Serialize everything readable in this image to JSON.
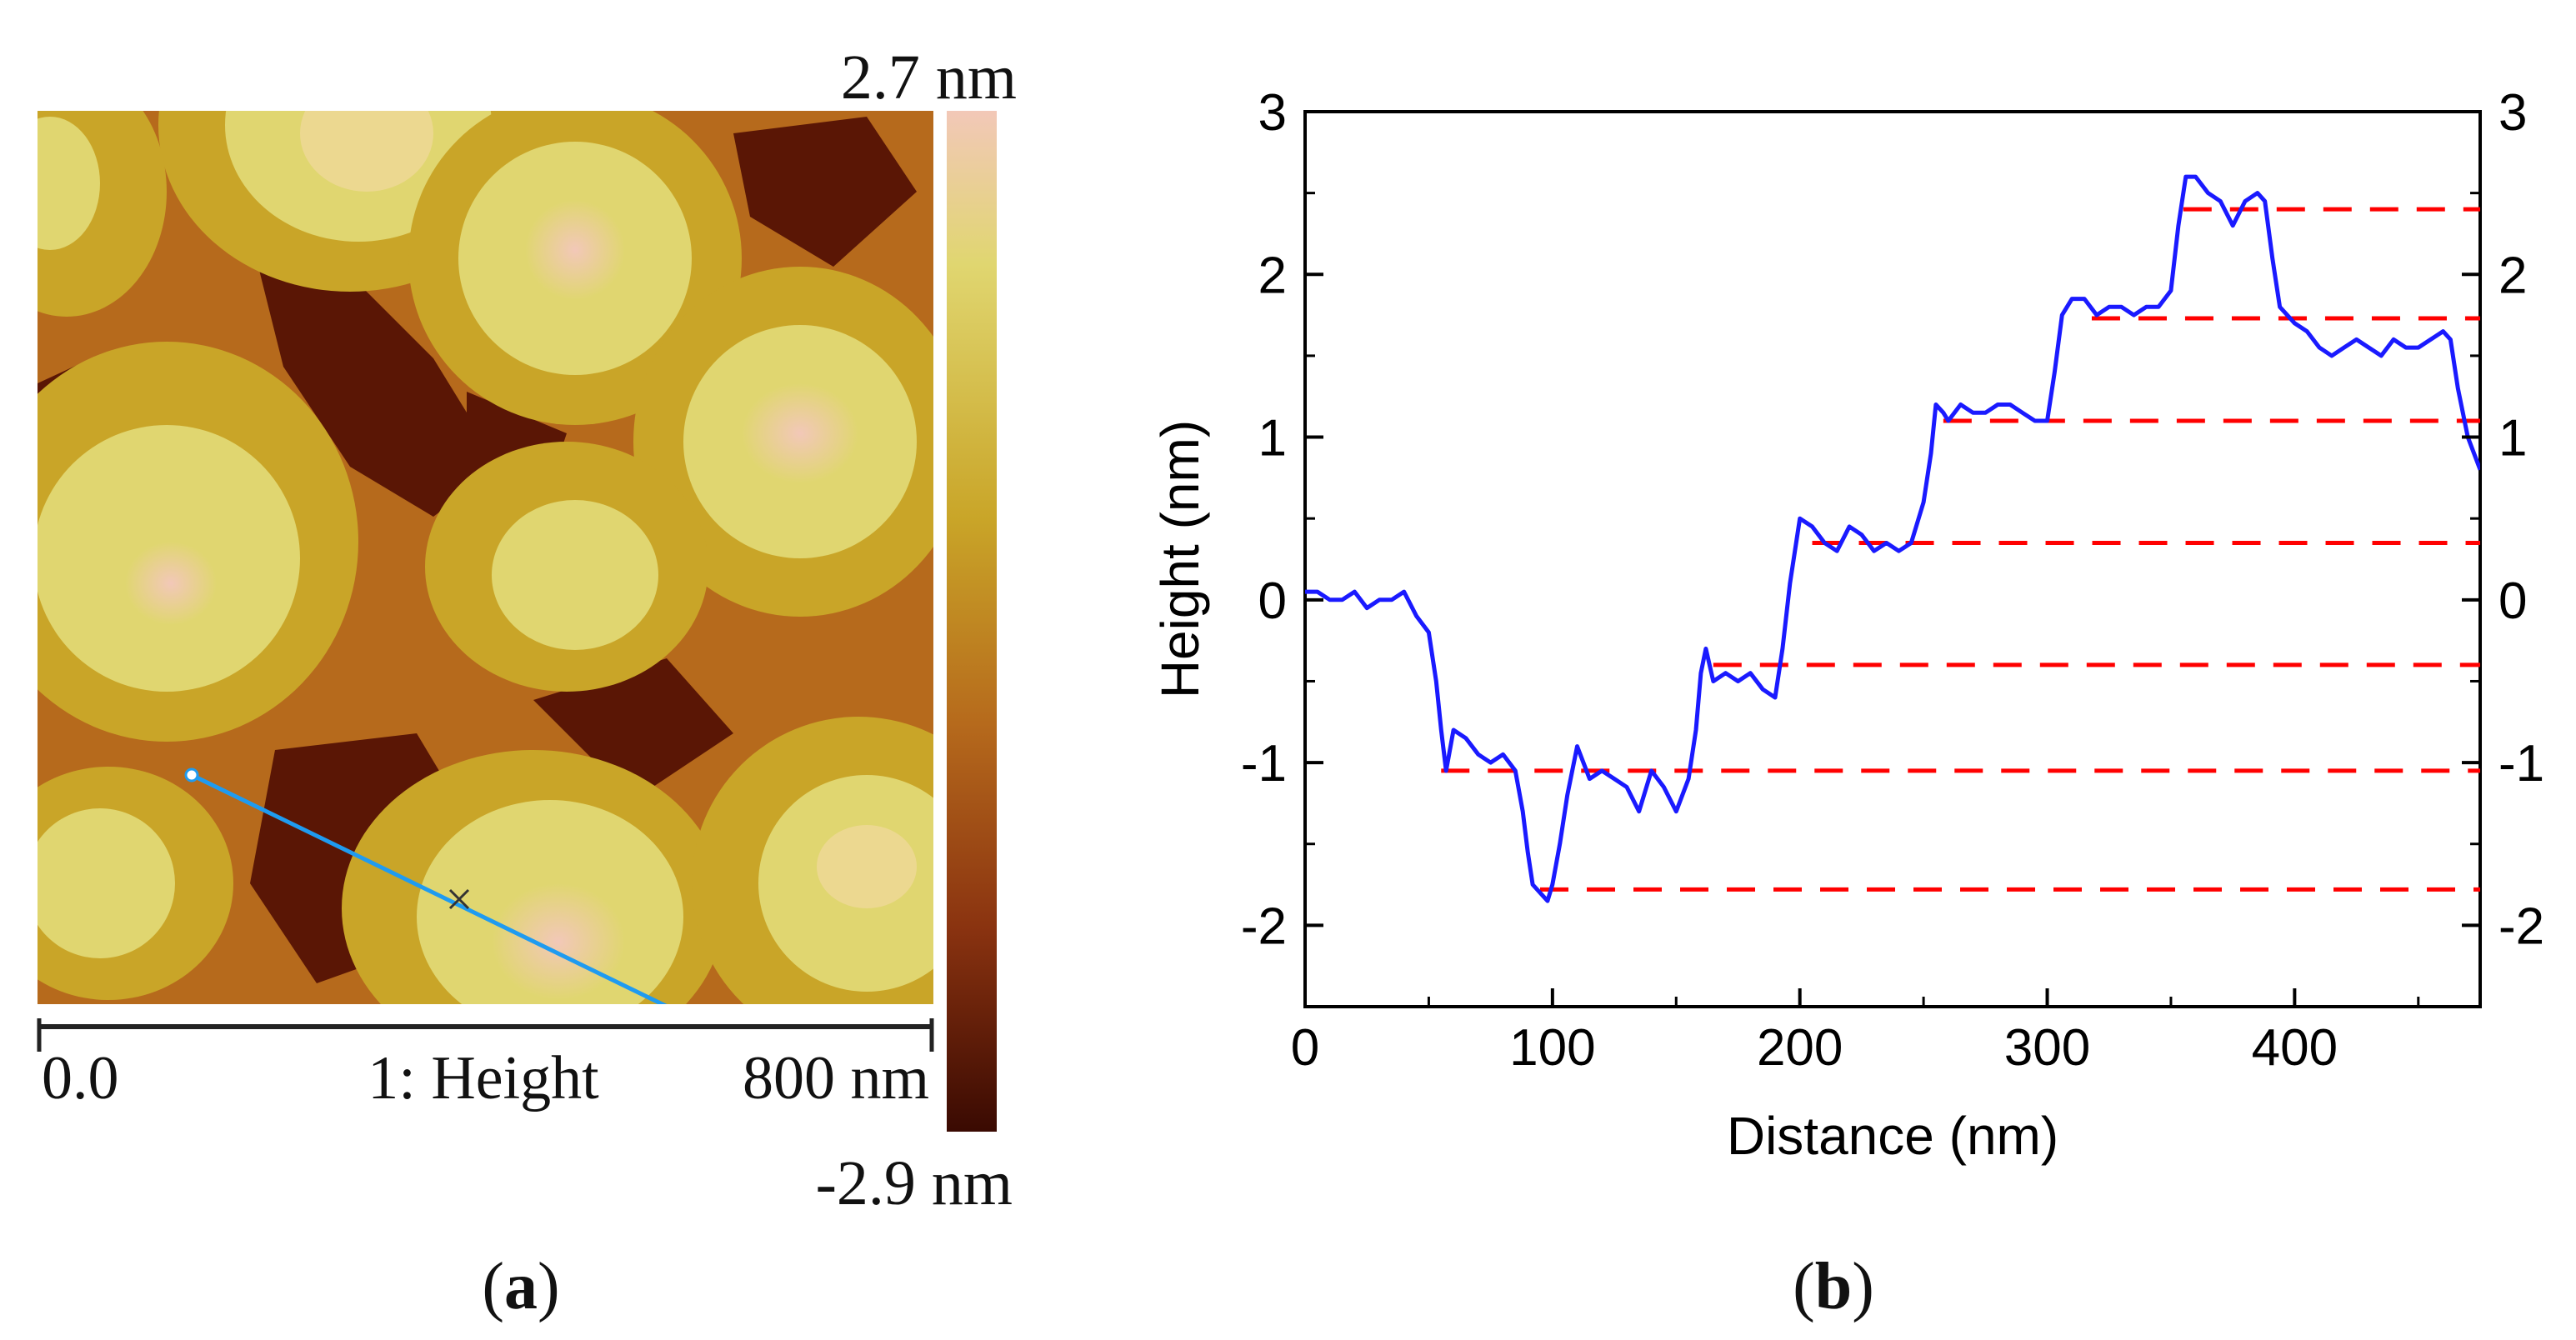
{
  "panel_a": {
    "label": "a",
    "colorbar": {
      "max_label": "2.7 nm",
      "min_label": "-2.9 nm",
      "min_nm": -2.9,
      "max_nm": 2.7
    },
    "scalebar": {
      "start_label": "0.0",
      "channel_label": "1: Height",
      "end_label": "800 nm"
    },
    "colors": {
      "dark": "#3a0a02",
      "mid_dark": "#8a3310",
      "mid": "#b66a1c",
      "mid_light": "#c9a528",
      "light": "#e0d670",
      "brightest": "#f2c8b8",
      "line": "#1f9bf0"
    }
  },
  "panel_b": {
    "label": "b"
  },
  "chart_data": {
    "type": "line",
    "title": "",
    "xlabel": "Distance (nm)",
    "ylabel": "Height (nm)",
    "xlim": [
      0,
      475
    ],
    "ylim": [
      -2.5,
      3
    ],
    "x_ticks": [
      0,
      100,
      200,
      300,
      400
    ],
    "x_tick_labels": [
      "0",
      "100",
      "200",
      "300",
      "400"
    ],
    "y_ticks": [
      -2,
      -1,
      0,
      1,
      2,
      3
    ],
    "y_tick_labels": [
      "-2",
      "-1",
      "0",
      "1",
      "2",
      "3"
    ],
    "grid": false,
    "series": [
      {
        "name": "height profile",
        "color": "#1a1aff",
        "x": [
          0,
          5,
          10,
          15,
          20,
          25,
          30,
          35,
          40,
          45,
          50,
          53,
          55,
          57,
          60,
          65,
          70,
          75,
          80,
          85,
          88,
          90,
          92,
          95,
          98,
          100,
          103,
          106,
          110,
          115,
          120,
          125,
          130,
          135,
          140,
          145,
          150,
          155,
          158,
          160,
          162,
          165,
          170,
          175,
          180,
          185,
          190,
          193,
          196,
          200,
          205,
          210,
          215,
          220,
          225,
          230,
          235,
          240,
          245,
          250,
          253,
          255,
          258,
          260,
          265,
          270,
          275,
          280,
          285,
          290,
          295,
          300,
          303,
          306,
          310,
          315,
          320,
          325,
          330,
          335,
          340,
          345,
          350,
          353,
          356,
          360,
          365,
          370,
          375,
          380,
          385,
          388,
          391,
          394,
          397,
          400,
          405,
          410,
          415,
          420,
          425,
          430,
          435,
          440,
          445,
          450,
          455,
          460,
          463,
          466,
          470,
          475
        ],
        "y": [
          0.05,
          0.05,
          0.0,
          0.0,
          0.05,
          -0.05,
          0.0,
          0.0,
          0.05,
          -0.1,
          -0.2,
          -0.5,
          -0.8,
          -1.05,
          -0.8,
          -0.85,
          -0.95,
          -1.0,
          -0.95,
          -1.05,
          -1.3,
          -1.55,
          -1.75,
          -1.8,
          -1.85,
          -1.75,
          -1.5,
          -1.2,
          -0.9,
          -1.1,
          -1.05,
          -1.1,
          -1.15,
          -1.3,
          -1.05,
          -1.15,
          -1.3,
          -1.1,
          -0.8,
          -0.45,
          -0.3,
          -0.5,
          -0.45,
          -0.5,
          -0.45,
          -0.55,
          -0.6,
          -0.3,
          0.1,
          0.5,
          0.45,
          0.35,
          0.3,
          0.45,
          0.4,
          0.3,
          0.35,
          0.3,
          0.35,
          0.6,
          0.9,
          1.2,
          1.15,
          1.1,
          1.2,
          1.15,
          1.15,
          1.2,
          1.2,
          1.15,
          1.1,
          1.1,
          1.4,
          1.75,
          1.85,
          1.85,
          1.75,
          1.8,
          1.8,
          1.75,
          1.8,
          1.8,
          1.9,
          2.3,
          2.6,
          2.6,
          2.5,
          2.45,
          2.3,
          2.45,
          2.5,
          2.45,
          2.1,
          1.8,
          1.75,
          1.7,
          1.65,
          1.55,
          1.5,
          1.55,
          1.6,
          1.55,
          1.5,
          1.6,
          1.55,
          1.55,
          1.6,
          1.65,
          1.6,
          1.3,
          1.0,
          0.8
        ]
      }
    ],
    "reference_levels": [
      {
        "y": 2.4,
        "x_start": 355,
        "x_end": 475
      },
      {
        "y": 1.73,
        "x_start": 318,
        "x_end": 475
      },
      {
        "y": 1.1,
        "x_start": 258,
        "x_end": 475
      },
      {
        "y": 0.35,
        "x_start": 205,
        "x_end": 475
      },
      {
        "y": -0.4,
        "x_start": 165,
        "x_end": 475
      },
      {
        "y": -1.05,
        "x_start": 55,
        "x_end": 475
      },
      {
        "y": -1.78,
        "x_start": 95,
        "x_end": 475
      }
    ],
    "reference_color": "#ff0000"
  }
}
